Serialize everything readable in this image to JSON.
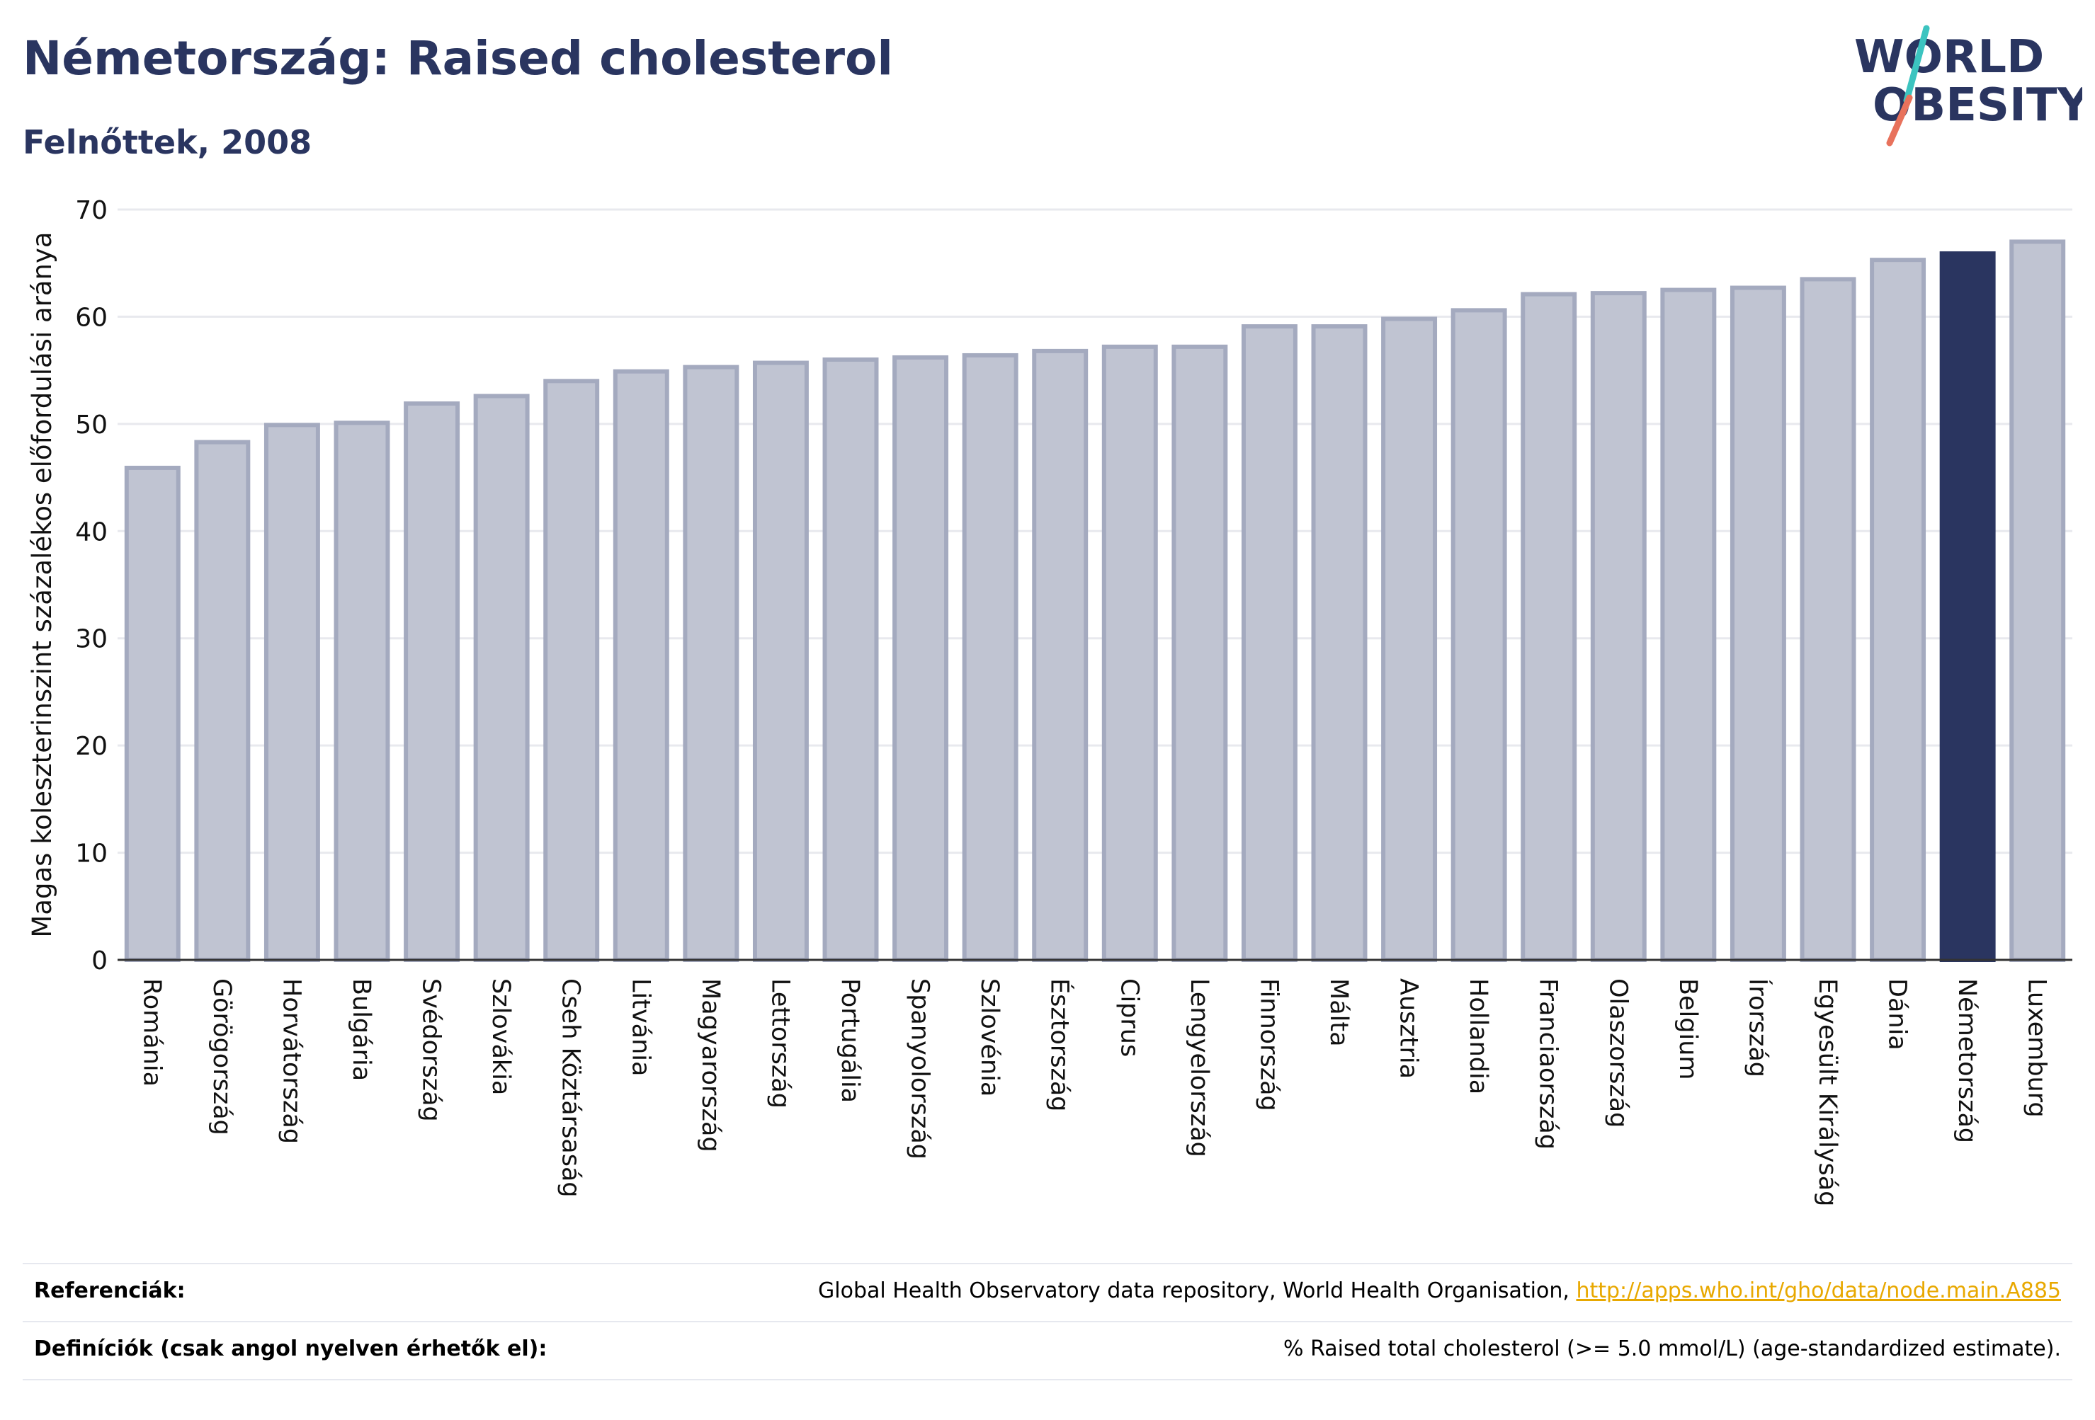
{
  "header": {
    "title": "Németország: Raised cholesterol",
    "subtitle": "Felnőttek, 2008"
  },
  "logo": {
    "line1": "WORLD",
    "line2": "OBESITY"
  },
  "colors": {
    "title": "#2a3560",
    "bar_default": "#c0c4d2",
    "bar_default_stroke": "#a4aabf",
    "bar_highlight": "#2a3560",
    "grid": "#e8e9ee",
    "link": "#e8a800",
    "logo_teal": "#3cc4c0",
    "logo_coral": "#e8725c"
  },
  "chart_data": {
    "type": "bar",
    "title": "Németország: Raised cholesterol",
    "subtitle": "Felnőttek, 2008",
    "ylabel": "Magas koleszterinszint százalékos előfordulási aránya",
    "xlabel": "",
    "ylim": [
      0,
      70
    ],
    "yticks": [
      0,
      10,
      20,
      30,
      40,
      50,
      60,
      70
    ],
    "grid": true,
    "highlight": "Németország",
    "categories": [
      "Románia",
      "Görögország",
      "Horvátország",
      "Bulgária",
      "Svédország",
      "Szlovákia",
      "Cseh Köztársaság",
      "Litvánia",
      "Magyarország",
      "Lettország",
      "Portugália",
      "Spanyolország",
      "Szlovénia",
      "Észtország",
      "Ciprus",
      "Lengyelország",
      "Finnország",
      "Málta",
      "Ausztria",
      "Hollandia",
      "Franciaország",
      "Olaszország",
      "Belgium",
      "Írország",
      "Egyesült Királyság",
      "Dánia",
      "Németország",
      "Luxemburg"
    ],
    "values": [
      45.9,
      48.3,
      49.9,
      50.1,
      51.9,
      52.6,
      54.0,
      54.9,
      55.3,
      55.7,
      56.0,
      56.2,
      56.4,
      56.8,
      57.2,
      57.2,
      59.1,
      59.1,
      59.8,
      60.6,
      62.1,
      62.2,
      62.5,
      62.7,
      63.5,
      65.3,
      65.9,
      67.0
    ]
  },
  "references": {
    "label": "Referenciák:",
    "text": "Global Health Observatory data repository, World Health Organisation, ",
    "link": "http://apps.who.int/gho/data/node.main.A885"
  },
  "definitions": {
    "label": "Definíciók (csak angol nyelven érhetők el):",
    "text": "% Raised total cholesterol (>= 5.0 mmol/L) (age-standardized estimate)."
  }
}
